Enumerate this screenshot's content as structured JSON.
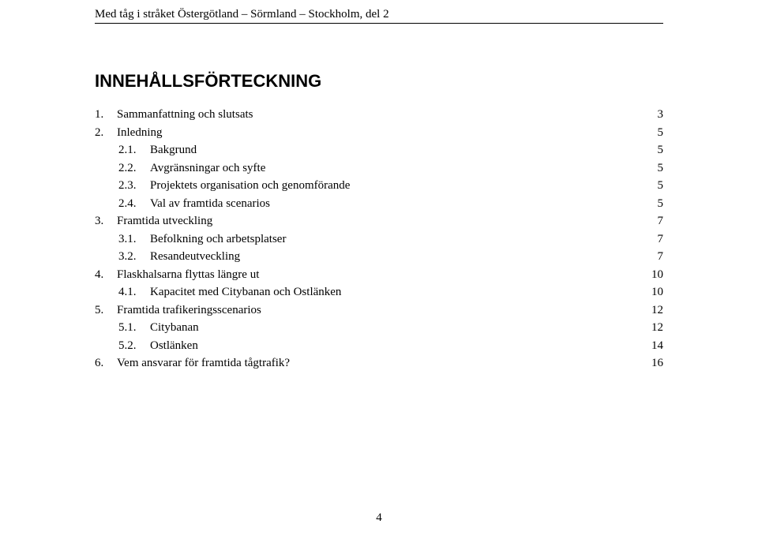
{
  "running_header": "Med tåg i stråket Östergötland – Sörmland – Stockholm, del 2",
  "toc_title": "INNEHÅLLSFÖRTECKNING",
  "toc": [
    {
      "level": 0,
      "num": "1.",
      "label": "Sammanfattning och slutsats",
      "page": "3"
    },
    {
      "level": 0,
      "num": "2.",
      "label": "Inledning",
      "page": "5"
    },
    {
      "level": 1,
      "num": "2.1.",
      "label": "Bakgrund",
      "page": "5"
    },
    {
      "level": 1,
      "num": "2.2.",
      "label": "Avgränsningar och syfte",
      "page": "5"
    },
    {
      "level": 1,
      "num": "2.3.",
      "label": "Projektets organisation och genomförande",
      "page": "5"
    },
    {
      "level": 1,
      "num": "2.4.",
      "label": "Val av framtida scenarios",
      "page": "5"
    },
    {
      "level": 0,
      "num": "3.",
      "label": "Framtida utveckling",
      "page": "7"
    },
    {
      "level": 1,
      "num": "3.1.",
      "label": "Befolkning och arbetsplatser",
      "page": "7"
    },
    {
      "level": 1,
      "num": "3.2.",
      "label": "Resandeutveckling",
      "page": "7"
    },
    {
      "level": 0,
      "num": "4.",
      "label": "Flaskhalsarna flyttas längre ut",
      "page": "10"
    },
    {
      "level": 1,
      "num": "4.1.",
      "label": "Kapacitet med Citybanan och Ostlänken",
      "page": "10"
    },
    {
      "level": 0,
      "num": "5.",
      "label": "Framtida trafikeringsscenarios",
      "page": "12"
    },
    {
      "level": 1,
      "num": "5.1.",
      "label": "Citybanan",
      "page": "12"
    },
    {
      "level": 1,
      "num": "5.2.",
      "label": "Ostlänken",
      "page": "14"
    },
    {
      "level": 0,
      "num": "6.",
      "label": "Vem ansvarar för framtida tågtrafik?",
      "page": "16"
    }
  ],
  "page_number": "4"
}
